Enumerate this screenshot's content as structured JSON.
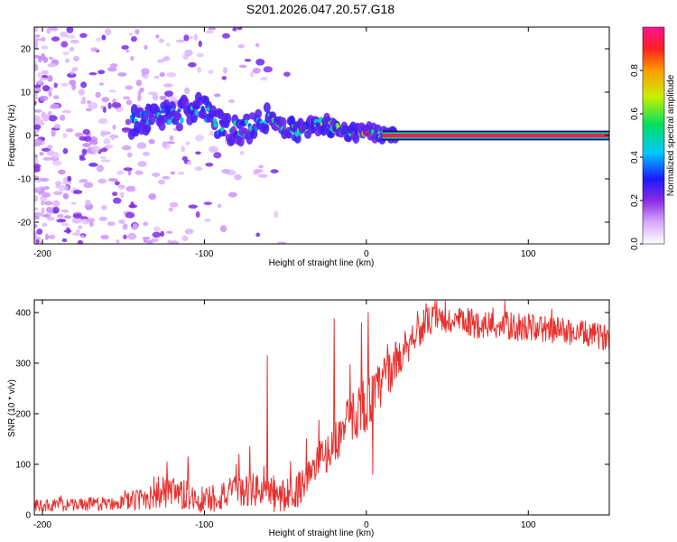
{
  "title": "S201.2026.047.20.57.G18",
  "chart_data": [
    {
      "type": "heatmap",
      "title": "S201.2026.047.20.57.G18",
      "xlabel": "Height of straight line (km)",
      "ylabel": "Frequency (Hz)",
      "xlim": [
        -205,
        150
      ],
      "ylim": [
        -25,
        25
      ],
      "xticks": [
        "-200",
        "-100",
        "0",
        "100"
      ],
      "xtick_values": [
        -200,
        -100,
        0,
        100
      ],
      "yticks": [
        "-20",
        "-10",
        "0",
        "10",
        "20"
      ],
      "ytick_values": [
        -20,
        -10,
        0,
        10,
        20
      ],
      "ridge": {
        "description": "dominant frequency track vs height",
        "x": [
          -145,
          -130,
          -120,
          -110,
          -100,
          -90,
          -80,
          -70,
          -60,
          -50,
          -40,
          -30,
          -20,
          -10,
          0,
          10,
          20,
          150
        ],
        "y": [
          3,
          5,
          4,
          6,
          6,
          2,
          1,
          2,
          5,
          2,
          1,
          3,
          2,
          0.5,
          0.8,
          0.3,
          0,
          0
        ]
      },
      "noise_region": {
        "x_from": -205,
        "x_to": -150,
        "amplitude_range": [
          0.0,
          0.2
        ]
      },
      "strong_band": {
        "x_from": 10,
        "x_to": 150,
        "frequency": 0,
        "amplitude": 0.95
      },
      "colorbar": {
        "label": "Normalized spectral amplitude",
        "range": [
          0,
          1
        ],
        "ticks": [
          "0.0",
          "0.2",
          "0.4",
          "0.6",
          "0.8"
        ],
        "tick_values": [
          0.0,
          0.2,
          0.4,
          0.6,
          0.8
        ]
      }
    },
    {
      "type": "line",
      "xlabel": "Height of straight line (km)",
      "ylabel": "SNR (10 * v/v)",
      "xlim": [
        -205,
        150
      ],
      "ylim": [
        0,
        425
      ],
      "xticks": [
        "-200",
        "-100",
        "0",
        "100"
      ],
      "xtick_values": [
        -200,
        -100,
        0,
        100
      ],
      "yticks": [
        "0",
        "100",
        "200",
        "300",
        "400"
      ],
      "ytick_values": [
        0,
        100,
        200,
        300,
        400
      ],
      "color": "#e8312f",
      "trend": {
        "x": [
          -205,
          -160,
          -140,
          -130,
          -120,
          -100,
          -80,
          -65,
          -55,
          -45,
          -40,
          -30,
          -20,
          -10,
          0,
          5,
          10,
          20,
          30,
          40,
          60,
          80,
          100,
          120,
          140,
          150
        ],
        "y": [
          18,
          22,
          30,
          45,
          40,
          30,
          45,
          50,
          35,
          40,
          60,
          100,
          140,
          190,
          225,
          230,
          265,
          310,
          360,
          385,
          380,
          375,
          370,
          365,
          355,
          350
        ]
      },
      "noise_amplitude": {
        "x": [
          -205,
          -150,
          -130,
          -100,
          -60,
          -40,
          -20,
          0,
          20,
          40,
          100,
          150
        ],
        "y": [
          12,
          14,
          35,
          30,
          35,
          35,
          40,
          60,
          40,
          30,
          28,
          25
        ]
      },
      "spikes": [
        {
          "x": -123,
          "y": 105
        },
        {
          "x": -110,
          "y": 115
        },
        {
          "x": -72,
          "y": 135
        },
        {
          "x": -61,
          "y": 315
        },
        {
          "x": -37,
          "y": 150
        },
        {
          "x": -20,
          "y": 388
        },
        {
          "x": -3,
          "y": 380
        },
        {
          "x": 1,
          "y": 400
        },
        {
          "x": 4,
          "y": 80
        }
      ]
    }
  ]
}
